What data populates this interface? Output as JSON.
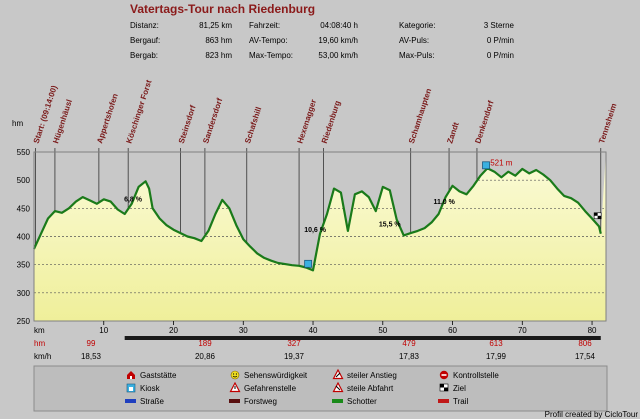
{
  "title": "Vatertags-Tour nach Riedenburg",
  "stats": [
    {
      "label": "Distanz:",
      "value": "81,25 km"
    },
    {
      "label": "Bergauf:",
      "value": "863 hm"
    },
    {
      "label": "Bergab:",
      "value": "823 hm"
    },
    {
      "label": "Fahrzeit:",
      "value": "04:08:40 h"
    },
    {
      "label": "AV-Tempo:",
      "value": "19,60 km/h"
    },
    {
      "label": "Max-Tempo:",
      "value": "53,00 km/h"
    },
    {
      "label": "Kategorie:",
      "value": "3 Sterne"
    },
    {
      "label": "AV-Puls:",
      "value": "0 P/min"
    },
    {
      "label": "Max-Puls:",
      "value": "0 P/min"
    }
  ],
  "waypoints": [
    {
      "km": 0.2,
      "name": "Start: (09:14:00)"
    },
    {
      "km": 3.0,
      "name": "Hügenhäusl"
    },
    {
      "km": 9.3,
      "name": "Appertshofen"
    },
    {
      "km": 13.5,
      "name": "Köschinger Forst"
    },
    {
      "km": 21.0,
      "name": "Steinsdorf"
    },
    {
      "km": 24.5,
      "name": "Sandersdorf"
    },
    {
      "km": 30.5,
      "name": "Schafshill"
    },
    {
      "km": 38.0,
      "name": "Hexenagger"
    },
    {
      "km": 41.5,
      "name": "Riedenburg"
    },
    {
      "km": 54.0,
      "name": "Schamhaupten"
    },
    {
      "km": 59.5,
      "name": "Zandt"
    },
    {
      "km": 63.5,
      "name": "Denkendorf"
    },
    {
      "km": 81.25,
      "name": "Tennsheim"
    }
  ],
  "annotations": [
    {
      "km": 14.2,
      "y": 462,
      "text": "6,8 %"
    },
    {
      "km": 40.3,
      "y": 408,
      "text": "10,6 %"
    },
    {
      "km": 51.0,
      "y": 418,
      "text": "15,5 %"
    },
    {
      "km": 58.8,
      "y": 458,
      "text": "11,0 %"
    },
    {
      "km": 67.0,
      "y": 526,
      "text": "521 m"
    }
  ],
  "rows": {
    "km_label": "km",
    "hm_label": "hm",
    "kmh_label": "km/h",
    "hm_values": [
      "99",
      "189",
      "327",
      "479",
      "613",
      "806"
    ],
    "kmh_values": [
      "18,53",
      "20,86",
      "19,37",
      "17,83",
      "17,99",
      "17,54"
    ]
  },
  "legend": [
    {
      "icon": "house-icon",
      "text": "Gaststätte"
    },
    {
      "icon": "smiley-icon",
      "text": "Sehenswürdigkeit"
    },
    {
      "icon": "warning-up-icon",
      "text": "steiler Anstieg"
    },
    {
      "icon": "checkpoint-icon",
      "text": "Kontrollstelle"
    },
    {
      "icon": "kiosk-icon",
      "text": "Kiosk"
    },
    {
      "icon": "warning-icon",
      "text": "Gefahrenstelle"
    },
    {
      "icon": "warning-down-icon",
      "text": "steile Abfahrt"
    },
    {
      "icon": "finish-flag-icon",
      "text": "Ziel"
    },
    {
      "icon": "road-swatch-icon",
      "text": "Straße",
      "color": "#1f3fbf"
    },
    {
      "icon": "forest-swatch-icon",
      "text": "Forstweg",
      "color": "#5a1010"
    },
    {
      "icon": "gravel-swatch-icon",
      "text": "Schotter",
      "color": "#1a8a1a"
    },
    {
      "icon": "trail-swatch-icon",
      "text": "Trail",
      "color": "#c01818"
    }
  ],
  "footer": "Profil created by CicloTour",
  "colors": {
    "profile": "#1a7a1a",
    "fill_top": "#fbfbd0",
    "fill_bottom": "#f0f09c",
    "waypoint": "#7a1a1a",
    "peak": "#c00000"
  },
  "chart_data": {
    "type": "area",
    "ylabel": "hm",
    "xlabel": "km",
    "xlim": [
      0,
      82
    ],
    "ylim": [
      250,
      550
    ],
    "xticks": [
      10,
      20,
      30,
      40,
      50,
      60,
      70,
      80
    ],
    "yticks": [
      250,
      300,
      350,
      400,
      450,
      500,
      550
    ],
    "grid": true,
    "x": [
      0,
      1,
      2,
      3,
      4,
      5,
      6,
      7,
      8,
      9,
      10,
      11,
      12,
      13,
      14,
      15,
      16,
      16.5,
      17,
      18,
      19,
      20,
      21,
      22,
      23,
      24,
      25,
      26,
      27,
      28,
      29,
      30,
      31,
      32,
      33,
      34,
      35,
      36,
      37,
      38,
      39,
      40,
      41,
      42,
      43,
      44,
      45,
      46,
      47,
      48,
      49,
      50,
      51,
      52,
      53,
      54,
      55,
      56,
      57,
      58,
      59,
      60,
      61,
      62,
      63,
      64,
      65,
      66,
      67,
      68,
      69,
      70,
      71,
      72,
      73,
      74,
      75,
      76,
      77,
      78,
      79,
      80,
      81,
      81.25
    ],
    "y": [
      378,
      405,
      432,
      445,
      442,
      450,
      462,
      470,
      464,
      458,
      466,
      462,
      448,
      440,
      458,
      488,
      498,
      485,
      450,
      432,
      420,
      412,
      406,
      400,
      397,
      392,
      410,
      440,
      465,
      450,
      420,
      395,
      382,
      370,
      362,
      357,
      353,
      351,
      349,
      348,
      345,
      340,
      405,
      440,
      485,
      478,
      410,
      475,
      480,
      470,
      445,
      488,
      482,
      430,
      402,
      406,
      410,
      415,
      425,
      440,
      470,
      490,
      480,
      475,
      490,
      508,
      521,
      515,
      505,
      515,
      508,
      520,
      512,
      518,
      510,
      500,
      485,
      472,
      468,
      460,
      445,
      432,
      418,
      405
    ]
  }
}
